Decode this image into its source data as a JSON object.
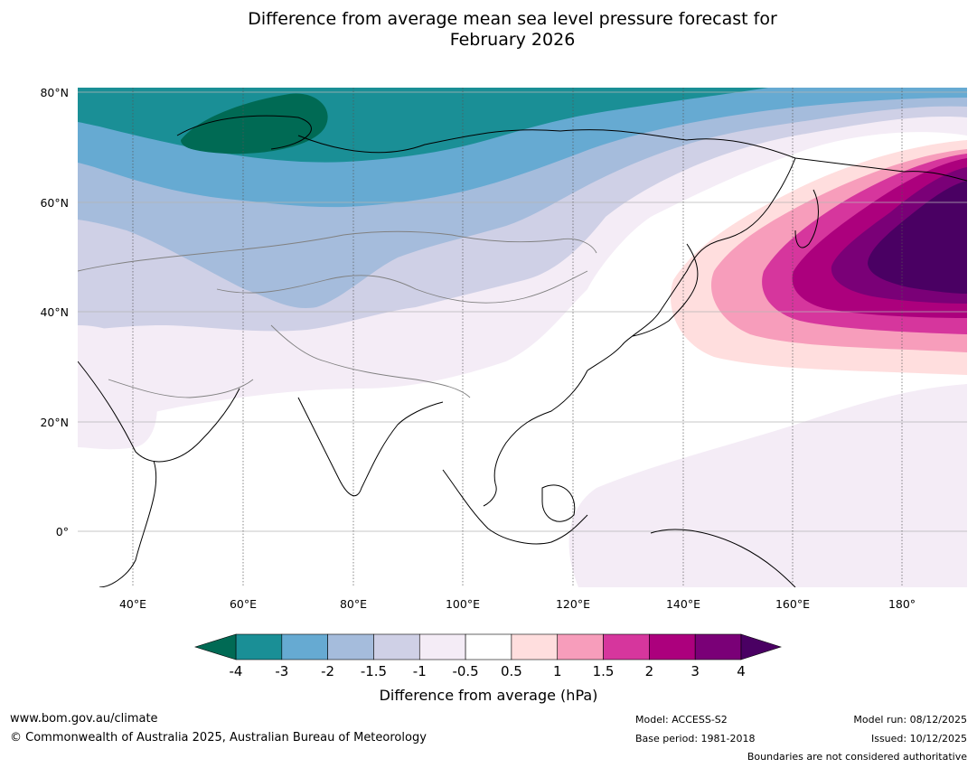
{
  "title_line1": "Difference from average mean sea level pressure forecast for",
  "title_line2": "February 2026",
  "map": {
    "lat_labels": [
      "80°N",
      "60°N",
      "40°N",
      "20°N",
      "0°"
    ],
    "lon_labels": [
      "40°E",
      "60°E",
      "80°E",
      "100°E",
      "120°E",
      "140°E",
      "160°E",
      "180°"
    ],
    "lat_values": [
      80,
      60,
      40,
      20,
      0
    ],
    "lon_values": [
      40,
      60,
      80,
      100,
      120,
      140,
      160,
      180
    ]
  },
  "colorbar": {
    "title": "Difference from average (hPa)",
    "tick_labels": [
      "-4",
      "-3",
      "-2",
      "-1.5",
      "-1",
      "-0.5",
      "0.5",
      "1",
      "1.5",
      "2",
      "3",
      "4"
    ],
    "colors": [
      "#1a8f96",
      "#66aad2",
      "#a5bcdc",
      "#cfd0e6",
      "#f4ecf6",
      "#ffffff",
      "#ffdede",
      "#f79dbb",
      "#d6369d",
      "#ac007d",
      "#7a0077"
    ],
    "under_color": "#006a54",
    "over_color": "#4a0063"
  },
  "footer": {
    "url": "www.bom.gov.au/climate",
    "copyright": "© Commonwealth of Australia 2025, Australian Bureau of Meteorology",
    "model": "Model: ACCESS-S2",
    "base_period": "Base period: 1981-2018",
    "model_run": "Model run: 08/12/2025",
    "issued": "Issued: 10/12/2025",
    "disclaimer": "Boundaries are not considered authoritative"
  }
}
